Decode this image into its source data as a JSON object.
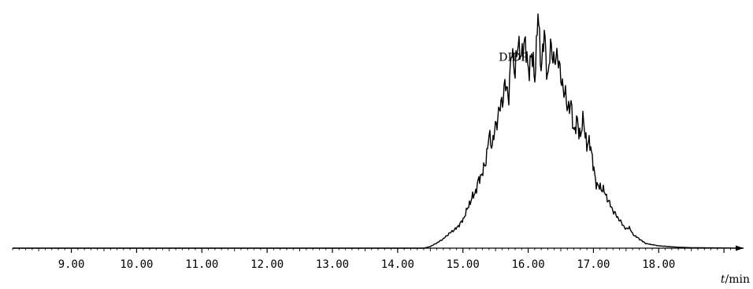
{
  "chart_data": {
    "type": "line",
    "title": "",
    "xlabel_var": "t",
    "xlabel_unit": "/min",
    "ylabel": "",
    "xlim": [
      8.1,
      19.3
    ],
    "ylim": [
      0,
      100
    ],
    "grid": false,
    "legend": "none",
    "x_ticks": [
      9.0,
      10.0,
      11.0,
      12.0,
      13.0,
      14.0,
      15.0,
      16.0,
      17.0,
      18.0
    ],
    "x_tick_labels": [
      "9.00",
      "10.00",
      "11.00",
      "12.00",
      "13.00",
      "14.00",
      "15.00",
      "16.00",
      "17.00",
      "18.00"
    ],
    "annotations": [
      {
        "text": "DIDP",
        "x": 15.55,
        "y": 80
      }
    ],
    "series": [
      {
        "x": [
          8.1,
          14.4,
          14.5,
          14.6,
          14.7,
          14.8,
          14.9,
          15.0,
          15.1,
          15.15,
          15.2,
          15.25,
          15.3,
          15.35,
          15.4,
          15.45,
          15.5,
          15.55,
          15.6,
          15.65,
          15.7,
          15.75,
          15.8,
          15.85,
          15.9,
          15.95,
          16.0,
          16.05,
          16.1,
          16.15,
          16.2,
          16.25,
          16.3,
          16.35,
          16.4,
          16.45,
          16.5,
          16.55,
          16.6,
          16.65,
          16.7,
          16.75,
          16.8,
          16.85,
          16.9,
          16.95,
          17.0,
          17.05,
          17.1,
          17.15,
          17.2,
          17.25,
          17.3,
          17.4,
          17.5,
          17.55,
          17.6,
          17.7,
          17.8,
          18.0,
          18.3,
          18.5,
          19.3
        ],
        "y": [
          0,
          0,
          0.7,
          2.2,
          4,
          6.5,
          8.5,
          12,
          19,
          22,
          24.5,
          30,
          32,
          37,
          48,
          44,
          52,
          58,
          63,
          70,
          65,
          85,
          75,
          89,
          80,
          91,
          74,
          84,
          72,
          100,
          77,
          92,
          71,
          88,
          78,
          84,
          72,
          68,
          60,
          62,
          50,
          54,
          48,
          55,
          43,
          46,
          34,
          27,
          26,
          25,
          22,
          19,
          16,
          12,
          8,
          9,
          6,
          4,
          2,
          1,
          0.4,
          0.2,
          0
        ]
      }
    ]
  }
}
